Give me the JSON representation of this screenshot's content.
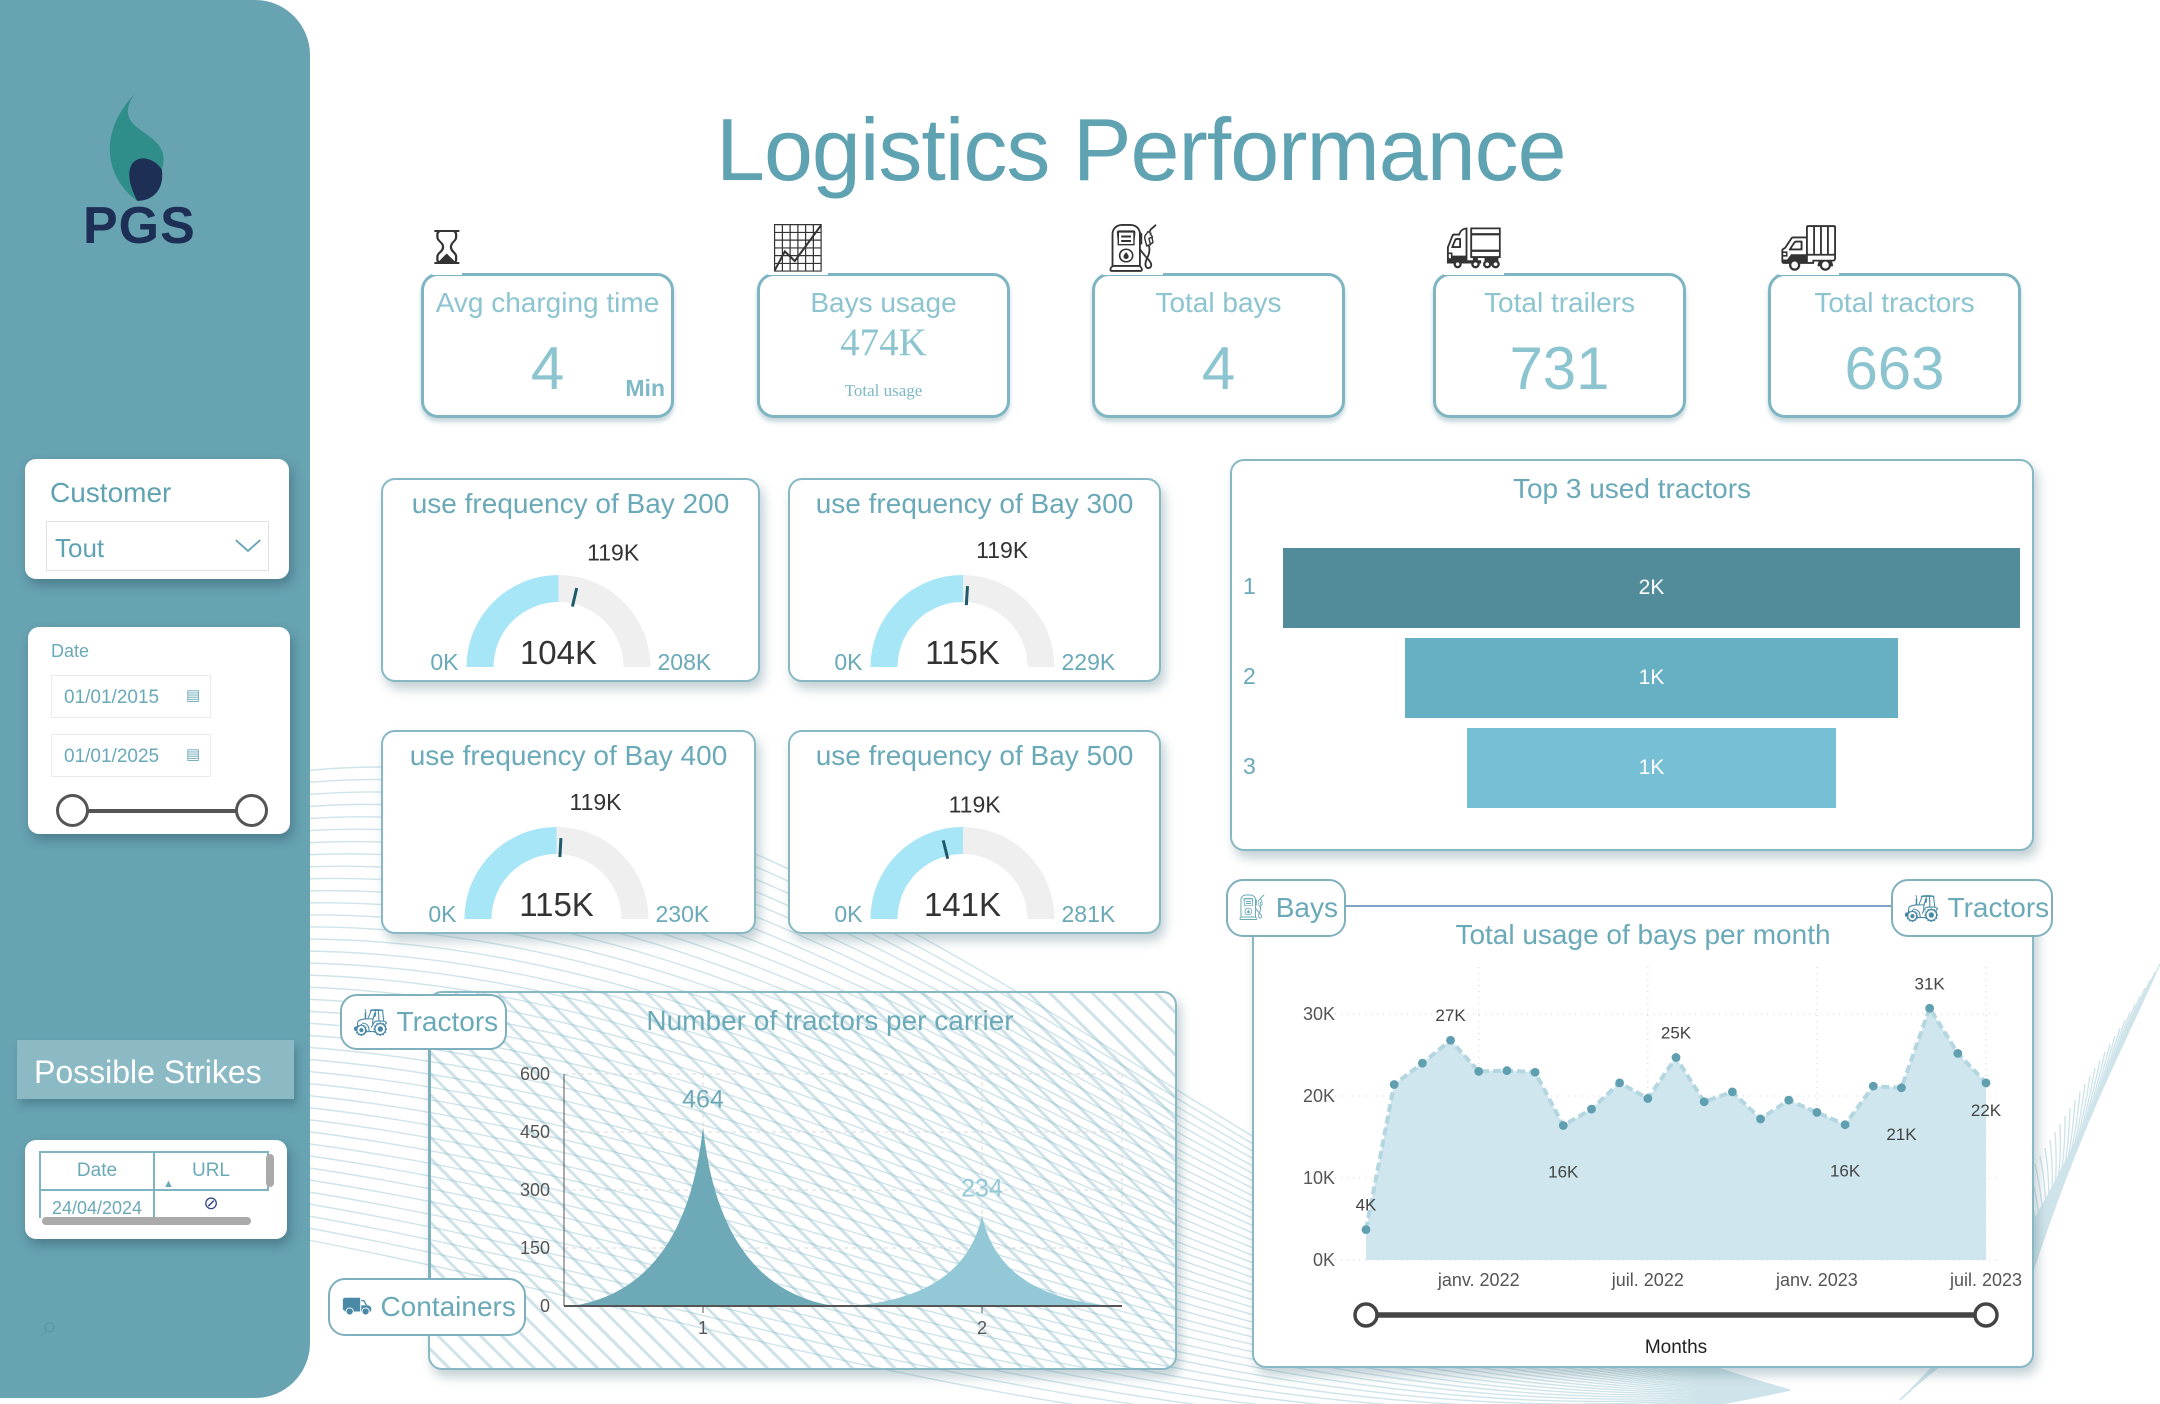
{
  "logo": {
    "text": "PGS"
  },
  "header": {
    "title": "Logistics Performance"
  },
  "filters": {
    "customer": {
      "label": "Customer",
      "value": "Tout"
    },
    "date": {
      "label": "Date",
      "start": "01/01/2015",
      "end": "01/01/2025"
    }
  },
  "strikes": {
    "title": "Possible Strikes",
    "columns": [
      "Date",
      "URL"
    ],
    "rows": [
      {
        "date": "24/04/2024",
        "url_icon": "link-icon"
      }
    ]
  },
  "kpis": [
    {
      "label": "Avg charging time",
      "value": "4",
      "unit": "Min",
      "icon": "hourglass-icon"
    },
    {
      "label": "Bays usage",
      "value": "474K",
      "sub": "Total usage",
      "icon": "chart-icon"
    },
    {
      "label": "Total bays",
      "value": "4",
      "icon": "charging-station-icon"
    },
    {
      "label": "Total trailers",
      "value": "731",
      "icon": "trailer-icon"
    },
    {
      "label": "Total tractors",
      "value": "663",
      "icon": "tractor-truck-icon"
    }
  ],
  "gauges": [
    {
      "title": "use frequency of Bay 200",
      "value": 104,
      "value_label": "104K",
      "min_label": "0K",
      "max": 208,
      "max_label": "208K",
      "target": 119,
      "target_label": "119K"
    },
    {
      "title": "use frequency of Bay 300",
      "value": 115,
      "value_label": "115K",
      "min_label": "0K",
      "max": 229,
      "max_label": "229K",
      "target": 119,
      "target_label": "119K"
    },
    {
      "title": "use frequency of Bay 400",
      "value": 115,
      "value_label": "115K",
      "min_label": "0K",
      "max": 230,
      "max_label": "230K",
      "target": 119,
      "target_label": "119K"
    },
    {
      "title": "use frequency of Bay 500",
      "value": 141,
      "value_label": "141K",
      "min_label": "0K",
      "max": 281,
      "max_label": "281K",
      "target": 119,
      "target_label": "119K"
    }
  ],
  "colors": {
    "sidebar": "#68a3b2",
    "accent": "#5fa3b3",
    "gauge_fill": "#a6e6f7",
    "gauge_track": "#efefef",
    "area": "#cfe6ee",
    "funnel": [
      "#528b9a",
      "#67afc3",
      "#77bfd4"
    ],
    "peaks": [
      "#6ea9b8",
      "#93c9d6"
    ]
  },
  "nav": {
    "bays": "Bays",
    "tractors": "Tractors",
    "containers": "Containers"
  },
  "chart_data": [
    {
      "type": "bar",
      "subtype": "funnel",
      "title": "Top 3 used tractors",
      "categories": [
        "1",
        "2",
        "3"
      ],
      "value_labels": [
        "2K",
        "1K",
        "1K"
      ],
      "share_of_top": [
        1,
        0.67,
        0.5
      ]
    },
    {
      "type": "area",
      "subtype": "pointed-peaks",
      "title": "Number of tractors per carrier",
      "categories": [
        "1",
        "2"
      ],
      "values": [
        464,
        234
      ],
      "ylim": [
        0,
        600
      ],
      "yticks": [
        0,
        150,
        300,
        450,
        600
      ],
      "grid": true
    },
    {
      "type": "area",
      "title": "Total usage of bays per month",
      "xlabel": "Months",
      "x": [
        "2021-09",
        "2021-10",
        "2021-11",
        "2021-12",
        "2022-01",
        "2022-02",
        "2022-03",
        "2022-04",
        "2022-05",
        "2022-06",
        "2022-07",
        "2022-08",
        "2022-09",
        "2022-10",
        "2022-11",
        "2022-12",
        "2023-01",
        "2023-02",
        "2023-03",
        "2023-04",
        "2023-05",
        "2023-06",
        "2023-07"
      ],
      "values": [
        3.7,
        21.4,
        24.0,
        26.8,
        23.0,
        23.1,
        22.9,
        16.4,
        18.4,
        21.6,
        19.7,
        24.7,
        19.3,
        20.5,
        17.2,
        19.5,
        18.0,
        16.5,
        21.2,
        21.0,
        30.7,
        25.2,
        21.6
      ],
      "unit": "K",
      "point_labels": {
        "0": "4K",
        "3": "27K",
        "7": "16K",
        "11": "25K",
        "17": "16K",
        "19": "21K",
        "20": "31K",
        "22": "22K"
      },
      "xtick_labels": {
        "4": "janv. 2022",
        "10": "juil. 2022",
        "16": "janv. 2023",
        "22": "juil. 2023"
      },
      "yticks": [
        "0K",
        "10K",
        "20K",
        "30K"
      ],
      "ylim": [
        0,
        30
      ],
      "grid": true
    }
  ]
}
